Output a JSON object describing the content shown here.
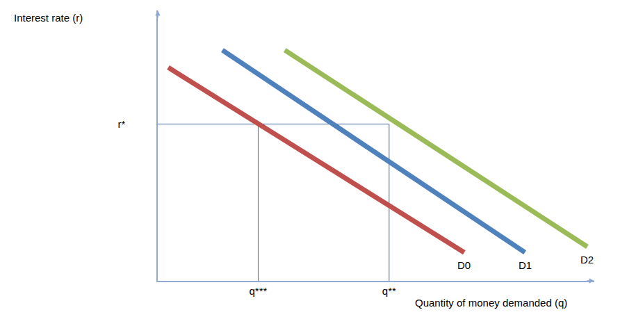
{
  "chart_data": {
    "type": "line",
    "x_label": "Quantity of money demanded (q)",
    "y_label": "Interest rate (r)",
    "xlim": [
      0,
      100
    ],
    "ylim": [
      0,
      100
    ],
    "xticks": [
      {
        "value": 23,
        "label": "q***"
      },
      {
        "value": 53,
        "label": "q**"
      }
    ],
    "yticks": [
      {
        "value": 58,
        "label": "r*"
      }
    ],
    "grid": false,
    "tick_labels": true,
    "series": [
      {
        "name": "D0",
        "color": "#c0504d",
        "x": [
          2.4,
          70.2
        ],
        "values": [
          78.9,
          10.5
        ]
      },
      {
        "name": "D1",
        "color": "#4f81bd",
        "x": [
          14.8,
          84.1
        ],
        "values": [
          85.3,
          10.5
        ]
      },
      {
        "name": "D2",
        "color": "#9bbb59",
        "x": [
          29.1,
          98.4
        ],
        "values": [
          85.3,
          12.6
        ]
      }
    ]
  }
}
